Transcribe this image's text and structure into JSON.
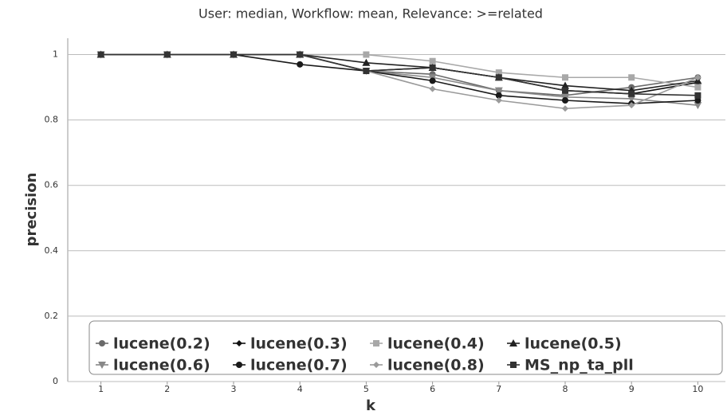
{
  "chart_data": {
    "type": "line",
    "title": "User: median, Workflow: mean, Relevance: >=related",
    "x_label": "k",
    "y_label": "precision",
    "x": [
      1,
      2,
      3,
      4,
      5,
      6,
      7,
      8,
      9,
      10
    ],
    "xlim": [
      0.5,
      10.5
    ],
    "xticks": [
      1,
      2,
      3,
      4,
      5,
      6,
      7,
      8,
      9,
      10
    ],
    "ylim": [
      0,
      1.05
    ],
    "yticks": [
      0,
      0.2,
      0.4,
      0.6,
      0.8,
      1
    ],
    "grid": true,
    "legend": "bottom",
    "series": [
      {
        "name": "lucene(0.2)",
        "color": "#6a6a6a",
        "marker": "circle",
        "values": [
          1,
          1,
          1,
          1,
          0.95,
          0.94,
          0.89,
          0.875,
          0.9,
          0.93
        ]
      },
      {
        "name": "lucene(0.3)",
        "color": "#111111",
        "marker": "diamond",
        "values": [
          1,
          1,
          1,
          1,
          0.95,
          0.96,
          0.93,
          0.89,
          0.88,
          0.915
        ]
      },
      {
        "name": "lucene(0.4)",
        "color": "#a8a8a8",
        "marker": "square",
        "values": [
          1,
          1,
          1,
          1,
          1,
          0.98,
          0.945,
          0.93,
          0.93,
          0.9
        ]
      },
      {
        "name": "lucene(0.5)",
        "color": "#222222",
        "marker": "triangle",
        "values": [
          1,
          1,
          1,
          1,
          0.975,
          0.96,
          0.93,
          0.905,
          0.89,
          0.92
        ]
      },
      {
        "name": "lucene(0.6)",
        "color": "#888888",
        "marker": "down-triangle",
        "values": [
          1,
          1,
          1,
          1,
          0.95,
          0.93,
          0.89,
          0.87,
          0.865,
          0.845
        ]
      },
      {
        "name": "lucene(0.7)",
        "color": "#1a1a1a",
        "marker": "circle",
        "values": [
          1,
          1,
          1,
          0.97,
          0.95,
          0.92,
          0.875,
          0.86,
          0.85,
          0.86
        ]
      },
      {
        "name": "lucene(0.8)",
        "color": "#9a9a9a",
        "marker": "diamond",
        "values": [
          1,
          1,
          1,
          1,
          0.95,
          0.895,
          0.86,
          0.835,
          0.845,
          0.93
        ]
      },
      {
        "name": "MS_np_ta_pll",
        "color": "#333333",
        "marker": "square",
        "values": [
          1,
          1,
          1,
          1,
          0.95,
          0.96,
          0.93,
          0.89,
          0.88,
          0.875
        ]
      }
    ]
  }
}
